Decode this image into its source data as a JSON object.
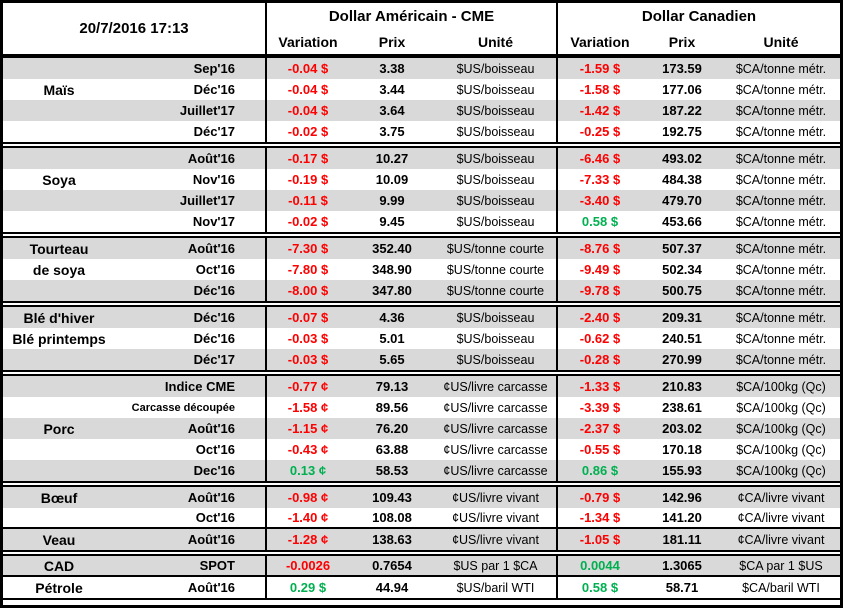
{
  "chart_data": {
    "type": "table",
    "timestamp": "20/7/2016 17:13",
    "sections": {
      "usd": "Dollar Américain - CME",
      "cad": "Dollar Canadien"
    },
    "columns": {
      "variation": "Variation",
      "prix": "Prix",
      "unite": "Unité"
    },
    "colors": {
      "negative": "#ff0000",
      "positive": "#00b050",
      "row_shade": "#d9d9d9",
      "border": "#000000"
    },
    "groups": [
      {
        "rows": [
          {
            "month": "Sep'16",
            "u_var": "-0.04 $",
            "u_prix": "3.38",
            "u_unit": "$US/boisseau",
            "c_var": "-1.59 $",
            "c_prix": "173.59",
            "c_unit": "$CA/tonne métr."
          },
          {
            "label": "Maïs",
            "month": "Déc'16",
            "u_var": "-0.04 $",
            "u_prix": "3.44",
            "u_unit": "$US/boisseau",
            "c_var": "-1.58 $",
            "c_prix": "177.06",
            "c_unit": "$CA/tonne métr."
          },
          {
            "month": "Juillet'17",
            "u_var": "-0.04 $",
            "u_prix": "3.64",
            "u_unit": "$US/boisseau",
            "c_var": "-1.42 $",
            "c_prix": "187.22",
            "c_unit": "$CA/tonne métr."
          },
          {
            "month": "Déc'17",
            "u_var": "-0.02 $",
            "u_prix": "3.75",
            "u_unit": "$US/boisseau",
            "c_var": "-0.25 $",
            "c_prix": "192.75",
            "c_unit": "$CA/tonne métr."
          }
        ]
      },
      {
        "rows": [
          {
            "month": "Août'16",
            "u_var": "-0.17 $",
            "u_prix": "10.27",
            "u_unit": "$US/boisseau",
            "c_var": "-6.46 $",
            "c_prix": "493.02",
            "c_unit": "$CA/tonne métr."
          },
          {
            "label": "Soya",
            "month": "Nov'16",
            "u_var": "-0.19 $",
            "u_prix": "10.09",
            "u_unit": "$US/boisseau",
            "c_var": "-7.33 $",
            "c_prix": "484.38",
            "c_unit": "$CA/tonne métr."
          },
          {
            "month": "Juillet'17",
            "u_var": "-0.11 $",
            "u_prix": "9.99",
            "u_unit": "$US/boisseau",
            "c_var": "-3.40 $",
            "c_prix": "479.70",
            "c_unit": "$CA/tonne métr."
          },
          {
            "month": "Nov'17",
            "u_var": "-0.02 $",
            "u_prix": "9.45",
            "u_unit": "$US/boisseau",
            "c_var": "0.58 $",
            "c_prix": "453.66",
            "c_unit": "$CA/tonne métr."
          }
        ]
      },
      {
        "rows": [
          {
            "label": "Tourteau",
            "month": "Août'16",
            "u_var": "-7.30 $",
            "u_prix": "352.40",
            "u_unit": "$US/tonne courte",
            "c_var": "-8.76 $",
            "c_prix": "507.37",
            "c_unit": "$CA/tonne métr."
          },
          {
            "label": "de soya",
            "month": "Oct'16",
            "u_var": "-7.80 $",
            "u_prix": "348.90",
            "u_unit": "$US/tonne courte",
            "c_var": "-9.49 $",
            "c_prix": "502.34",
            "c_unit": "$CA/tonne métr."
          },
          {
            "month": "Déc'16",
            "u_var": "-8.00 $",
            "u_prix": "347.80",
            "u_unit": "$US/tonne courte",
            "c_var": "-9.78 $",
            "c_prix": "500.75",
            "c_unit": "$CA/tonne métr."
          }
        ]
      },
      {
        "rows": [
          {
            "label": "Blé d'hiver",
            "month": "Déc'16",
            "u_var": "-0.07 $",
            "u_prix": "4.36",
            "u_unit": "$US/boisseau",
            "c_var": "-2.40 $",
            "c_prix": "209.31",
            "c_unit": "$CA/tonne métr."
          },
          {
            "label": "Blé printemps",
            "month": "Déc'16",
            "u_var": "-0.03 $",
            "u_prix": "5.01",
            "u_unit": "$US/boisseau",
            "c_var": "-0.62 $",
            "c_prix": "240.51",
            "c_unit": "$CA/tonne métr."
          },
          {
            "month": "Déc'17",
            "u_var": "-0.03 $",
            "u_prix": "5.65",
            "u_unit": "$US/boisseau",
            "c_var": "-0.28 $",
            "c_prix": "270.99",
            "c_unit": "$CA/tonne métr."
          }
        ]
      },
      {
        "rows": [
          {
            "month": "Indice CME",
            "u_var": "-0.77 ¢",
            "u_prix": "79.13",
            "u_unit": "¢US/livre carcasse",
            "c_var": "-1.33 $",
            "c_prix": "210.83",
            "c_unit": "$CA/100kg (Qc)"
          },
          {
            "month": "Carcasse découpée",
            "u_var": "-1.58 ¢",
            "u_prix": "89.56",
            "u_unit": "¢US/livre carcasse",
            "c_var": "-3.39 $",
            "c_prix": "238.61",
            "c_unit": "$CA/100kg (Qc)"
          },
          {
            "label": "Porc",
            "month": "Août'16",
            "u_var": "-1.15 ¢",
            "u_prix": "76.20",
            "u_unit": "¢US/livre carcasse",
            "c_var": "-2.37 $",
            "c_prix": "203.02",
            "c_unit": "$CA/100kg (Qc)"
          },
          {
            "month": "Oct'16",
            "u_var": "-0.43 ¢",
            "u_prix": "63.88",
            "u_unit": "¢US/livre carcasse",
            "c_var": "-0.55 $",
            "c_prix": "170.18",
            "c_unit": "$CA/100kg (Qc)"
          },
          {
            "month": "Dec'16",
            "u_var": "0.13 ¢",
            "u_prix": "58.53",
            "u_unit": "¢US/livre carcasse",
            "c_var": "0.86 $",
            "c_prix": "155.93",
            "c_unit": "$CA/100kg (Qc)"
          }
        ]
      },
      {
        "rows": [
          {
            "label": "Bœuf",
            "month": "Août'16",
            "u_var": "-0.98 ¢",
            "u_prix": "109.43",
            "u_unit": "¢US/livre vivant",
            "c_var": "-0.79 $",
            "c_prix": "142.96",
            "c_unit": "¢CA/livre vivant"
          },
          {
            "month": "Oct'16",
            "u_var": "-1.40 ¢",
            "u_prix": "108.08",
            "u_unit": "¢US/livre vivant",
            "c_var": "-1.34 $",
            "c_prix": "141.20",
            "c_unit": "¢CA/livre vivant",
            "divider": true
          },
          {
            "label": "Veau",
            "month": "Août'16",
            "u_var": "-1.28 ¢",
            "u_prix": "138.63",
            "u_unit": "¢US/livre vivant",
            "c_var": "-1.05 $",
            "c_prix": "181.11",
            "c_unit": "¢CA/livre vivant"
          }
        ]
      },
      {
        "rows": [
          {
            "label": "CAD",
            "month": "SPOT",
            "u_var": "-0.0026",
            "u_prix": "0.7654",
            "u_unit": "$US par 1 $CA",
            "c_var": "0.0044",
            "c_prix": "1.3065",
            "c_unit": "$CA par 1 $US",
            "divider": true
          },
          {
            "label": "Pétrole",
            "month": "Août'16",
            "u_var": "0.29 $",
            "u_prix": "44.94",
            "u_unit": "$US/baril WTI",
            "c_var": "0.58 $",
            "c_prix": "58.71",
            "c_unit": "$CA/baril WTI"
          }
        ]
      }
    ]
  }
}
